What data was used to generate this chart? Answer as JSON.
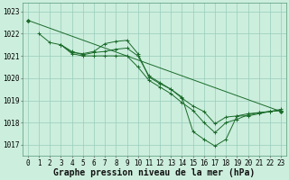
{
  "bg_color": "#cceedd",
  "grid_color": "#99ccbb",
  "line_color": "#1a6b2a",
  "xlabel": "Graphe pression niveau de la mer (hPa)",
  "xlabel_fontsize": 7,
  "tick_fontsize": 5.5,
  "ylim": [
    1016.5,
    1023.4
  ],
  "xlim": [
    -0.5,
    23.5
  ],
  "yticks": [
    1017,
    1018,
    1019,
    1020,
    1021,
    1022,
    1023
  ],
  "xticks": [
    0,
    1,
    2,
    3,
    4,
    5,
    6,
    7,
    8,
    9,
    10,
    11,
    12,
    13,
    14,
    15,
    16,
    17,
    18,
    19,
    20,
    21,
    22,
    23
  ],
  "lines": [
    {
      "x": [
        0,
        23
      ],
      "y": [
        1022.6,
        1018.5
      ],
      "marker": "D",
      "markersize": 2.0
    },
    {
      "x": [
        1,
        2,
        3,
        4,
        5,
        6,
        7,
        8,
        9,
        10,
        11,
        12,
        13,
        14,
        15,
        16,
        17,
        18,
        19,
        20,
        21,
        22,
        23
      ],
      "y": [
        1022.0,
        1021.6,
        1021.5,
        1021.15,
        1021.1,
        1021.2,
        1021.55,
        1021.65,
        1021.7,
        1021.1,
        1020.05,
        1019.75,
        1019.5,
        1019.15,
        1017.6,
        1017.25,
        1016.95,
        1017.25,
        1018.3,
        1018.3,
        1018.4,
        1018.5,
        1018.55
      ],
      "marker": "+",
      "markersize": 3.5
    },
    {
      "x": [
        3,
        4,
        5,
        6,
        7,
        8,
        9,
        10,
        11,
        12,
        13,
        14,
        15,
        16,
        17,
        18,
        19,
        20,
        21,
        22,
        23
      ],
      "y": [
        1021.5,
        1021.2,
        1021.05,
        1021.15,
        1021.2,
        1021.3,
        1021.35,
        1021.0,
        1020.1,
        1019.8,
        1019.5,
        1019.1,
        1018.75,
        1018.5,
        1017.95,
        1018.25,
        1018.3,
        1018.4,
        1018.45,
        1018.5,
        1018.55
      ],
      "marker": "+",
      "markersize": 3.5
    },
    {
      "x": [
        3,
        4,
        5,
        6,
        7,
        8,
        9,
        10,
        11,
        12,
        13,
        14,
        15,
        16,
        17,
        18,
        19,
        20,
        21,
        22,
        23
      ],
      "y": [
        1021.5,
        1021.1,
        1021.0,
        1021.0,
        1021.0,
        1021.0,
        1021.0,
        1020.5,
        1019.9,
        1019.6,
        1019.3,
        1018.9,
        1018.55,
        1018.0,
        1017.55,
        1018.0,
        1018.15,
        1018.35,
        1018.45,
        1018.5,
        1018.6
      ],
      "marker": "+",
      "markersize": 3.5
    }
  ]
}
